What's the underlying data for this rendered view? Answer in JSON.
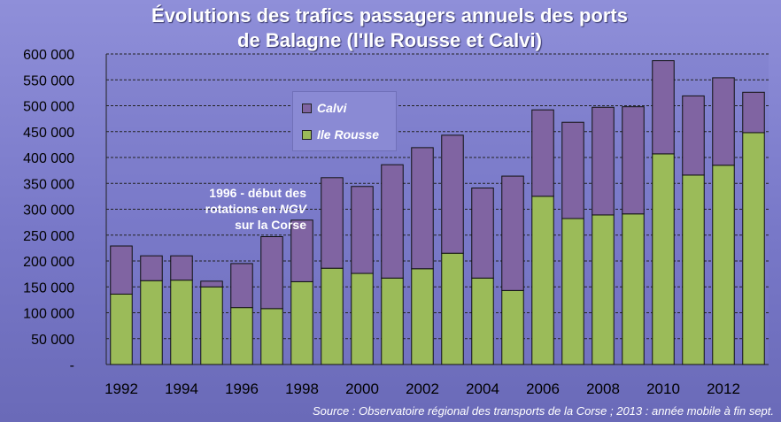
{
  "chart_data": {
    "type": "bar",
    "stacked": true,
    "title": "Évolutions des trafics passagers annuels des ports de Balagne (l'Ile Rousse et Calvi)",
    "title_lines": [
      "Évolutions des trafics passagers annuels des ports",
      "de Balagne (l'Ile Rousse et Calvi)"
    ],
    "categories": [
      "1992",
      "1993",
      "1994",
      "1995",
      "1996",
      "1997",
      "1998",
      "1999",
      "2000",
      "2001",
      "2002",
      "2003",
      "2004",
      "2005",
      "2006",
      "2007",
      "2008",
      "2009",
      "2010",
      "2011",
      "2012",
      "2013"
    ],
    "x_tick_labels": [
      "1992",
      "",
      "1994",
      "",
      "1996",
      "",
      "1998",
      "",
      "2000",
      "",
      "2002",
      "",
      "2004",
      "",
      "2006",
      "",
      "2008",
      "",
      "2010",
      "",
      "2012",
      ""
    ],
    "series": [
      {
        "name": "Ile Rousse",
        "color": "#9bbb59",
        "values": [
          136000,
          162000,
          163000,
          150000,
          110000,
          108000,
          160000,
          186000,
          176000,
          167000,
          185000,
          215000,
          167000,
          143000,
          325000,
          282000,
          289000,
          291000,
          407000,
          366000,
          385000,
          448000
        ]
      },
      {
        "name": "Calvi",
        "color": "#8064a2",
        "values": [
          93000,
          48000,
          47000,
          11000,
          85000,
          139000,
          119000,
          175000,
          168000,
          219000,
          234000,
          228000,
          174000,
          221000,
          167000,
          186000,
          208000,
          207000,
          180000,
          153000,
          169000,
          78000
        ]
      }
    ],
    "ylim": [
      0,
      600000
    ],
    "y_ticks": [
      0,
      50000,
      100000,
      150000,
      200000,
      250000,
      300000,
      350000,
      400000,
      450000,
      500000,
      550000,
      600000
    ],
    "y_tick_labels": [
      "-",
      "50 000",
      "100 000",
      "150 000",
      "200 000",
      "250 000",
      "300 000",
      "350 000",
      "400 000",
      "450 000",
      "500 000",
      "550 000",
      "600 000"
    ],
    "grid": true,
    "legend_position": "top-center",
    "annotation": {
      "parts": [
        [
          "1996 - début des",
          false
        ],
        [
          "rotations en ",
          false
        ],
        [
          "NGV",
          true
        ],
        [
          "sur la Corse",
          false
        ]
      ]
    },
    "source": "Source : Observatoire régional des transports de la Corse ; 2013 : année mobile à fin sept."
  }
}
